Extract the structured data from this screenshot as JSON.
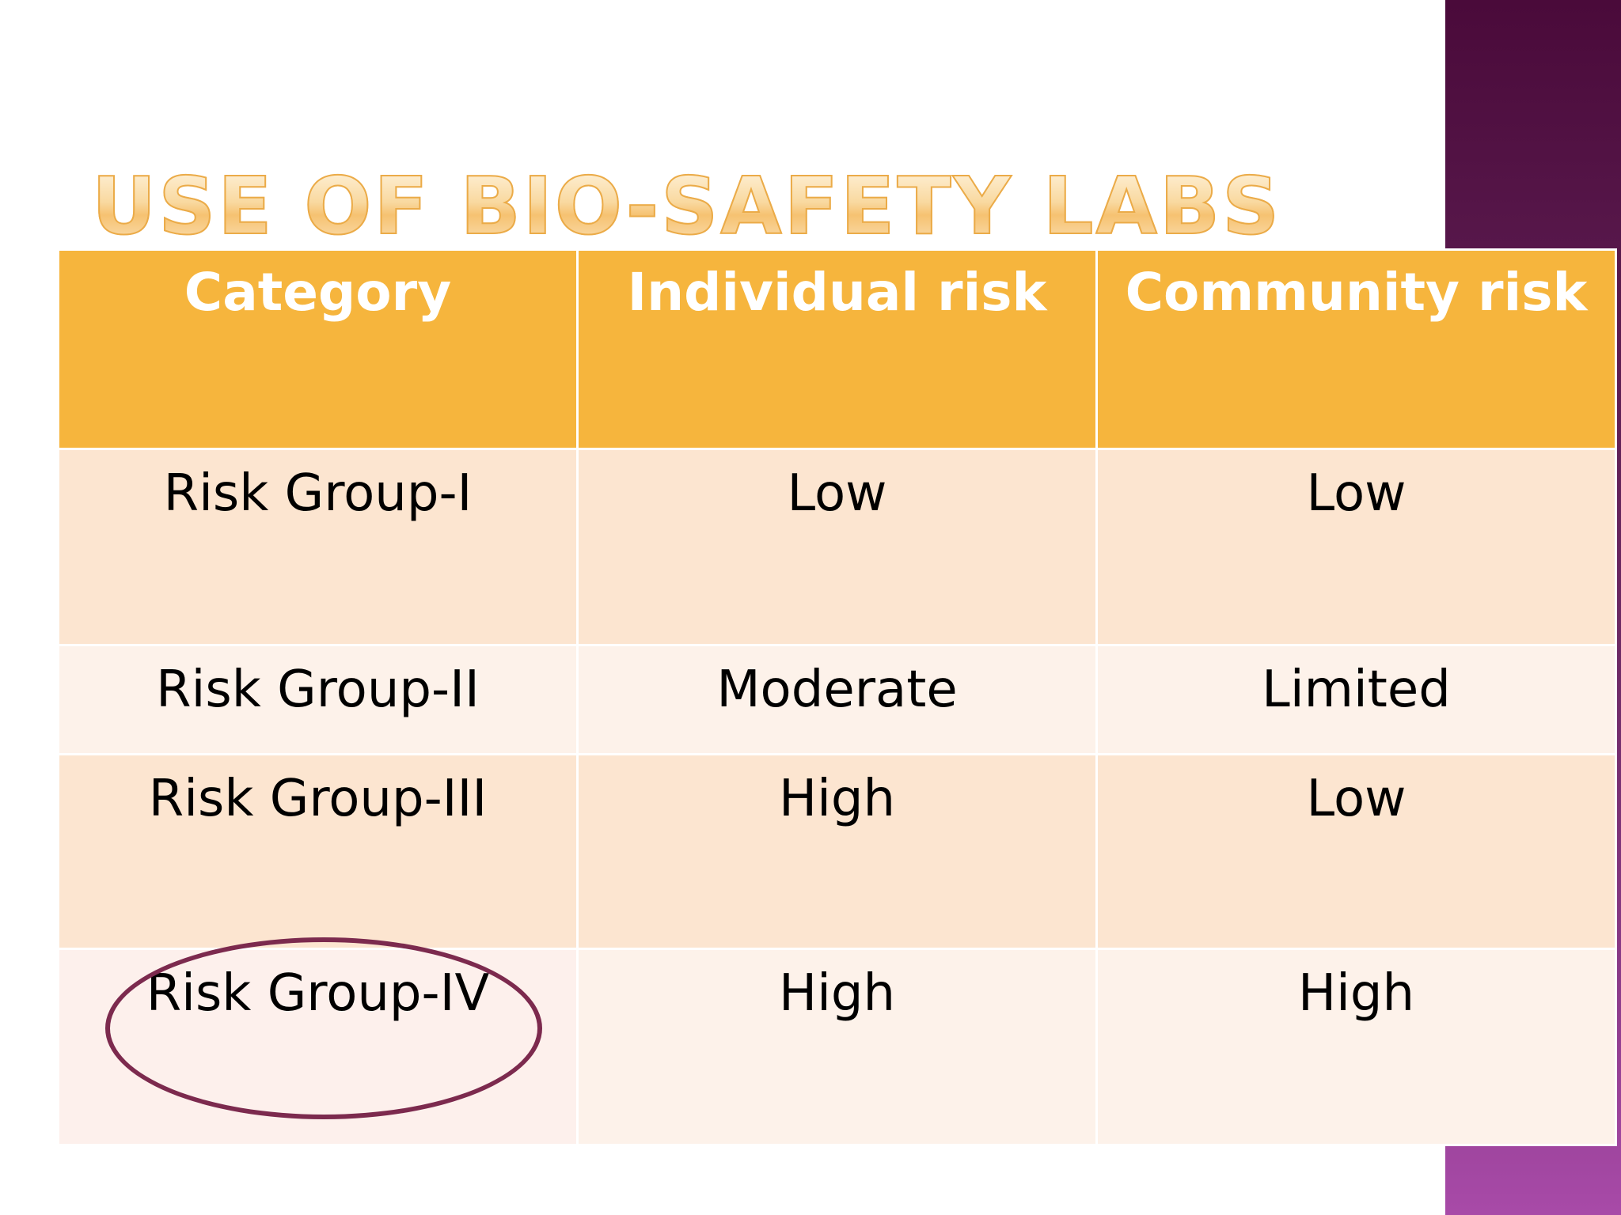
{
  "slide": {
    "title": "USE OF BIO-SAFETY LABS"
  },
  "table": {
    "headers": [
      "Category",
      "Individual risk",
      "Community risk"
    ],
    "rows": [
      [
        "Risk Group-I",
        "Low",
        "Low"
      ],
      [
        "Risk Group-II",
        "Moderate",
        "Limited"
      ],
      [
        "Risk Group-III",
        "High",
        "Low"
      ],
      [
        "Risk Group-IV",
        "High",
        "High"
      ]
    ]
  },
  "colors": {
    "header_fill": "#f6b53d",
    "row_fill_odd": "#fce5d0",
    "row_fill_even": "#fdf2ea",
    "highlight_ellipse": "#7c2a4e",
    "side_bar_top": "#4a0a3a",
    "side_bar_bottom": "#a84aa8"
  },
  "annotations": {
    "highlighted_row": "Risk Group-IV"
  }
}
